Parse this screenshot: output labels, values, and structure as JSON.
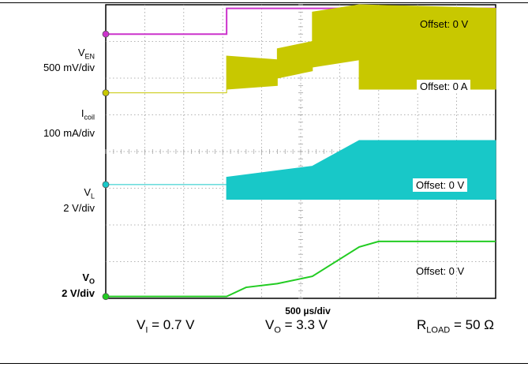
{
  "chart_data": {
    "type": "line",
    "title": "",
    "x_axis": {
      "label": "500 µs/div",
      "divisions": 10,
      "range_div": [
        0,
        10
      ]
    },
    "y_axis": {
      "divisions": 8,
      "range_div": [
        0,
        8
      ]
    },
    "grid": true,
    "series": [
      {
        "name": "V_EN",
        "label_main": "V",
        "label_sub": "EN",
        "scale": "500 mV/div",
        "offset": "Offset: 0 V",
        "color": "#cc33cc",
        "x": [
          0,
          3.1,
          3.1,
          10
        ],
        "y": [
          7.2,
          7.2,
          7.9,
          7.9
        ]
      },
      {
        "name": "I_coil",
        "label_main": "I",
        "label_sub": "coil",
        "scale": "100 mA/div",
        "offset": "Offset: 0 A",
        "color": "#c8c800",
        "x": [
          0,
          3.1,
          3.1,
          4.4,
          4.4,
          5.3,
          5.3,
          6.5,
          6.5,
          10
        ],
        "y_low": [
          5.6,
          5.6,
          5.7,
          5.8,
          6.0,
          6.2,
          6.3,
          6.5,
          5.7,
          5.7
        ],
        "y_high": [
          5.6,
          5.6,
          6.6,
          6.5,
          6.8,
          7.0,
          7.8,
          8.0,
          8.0,
          7.9
        ]
      },
      {
        "name": "V_L",
        "label_main": "V",
        "label_sub": "L",
        "scale": "2 V/div",
        "offset": "Offset: 0 V",
        "color": "#18c8c8",
        "x": [
          0,
          3.1,
          3.1,
          5.3,
          6.5,
          10
        ],
        "y_low": [
          3.1,
          3.1,
          2.7,
          2.7,
          2.7,
          2.7
        ],
        "y_high": [
          3.1,
          3.1,
          3.3,
          3.6,
          4.3,
          4.3
        ]
      },
      {
        "name": "V_O",
        "label_main": "V",
        "label_sub": "O",
        "scale": "2 V/div",
        "offset": "Offset: 0 V",
        "color": "#22cc22",
        "x": [
          0,
          3.1,
          3.6,
          4.4,
          5.3,
          6.5,
          7.0,
          10
        ],
        "y": [
          0.05,
          0.05,
          0.3,
          0.4,
          0.6,
          1.4,
          1.55,
          1.55
        ]
      }
    ]
  },
  "conditions": {
    "vi": {
      "main": "V",
      "sub": "I",
      "value": " = 0.7 V"
    },
    "vo": {
      "main": "V",
      "sub": "O",
      "value": " = 3.3 V"
    },
    "rload": {
      "main": "R",
      "sub": "LOAD",
      "value": " = 50 Ω"
    }
  }
}
